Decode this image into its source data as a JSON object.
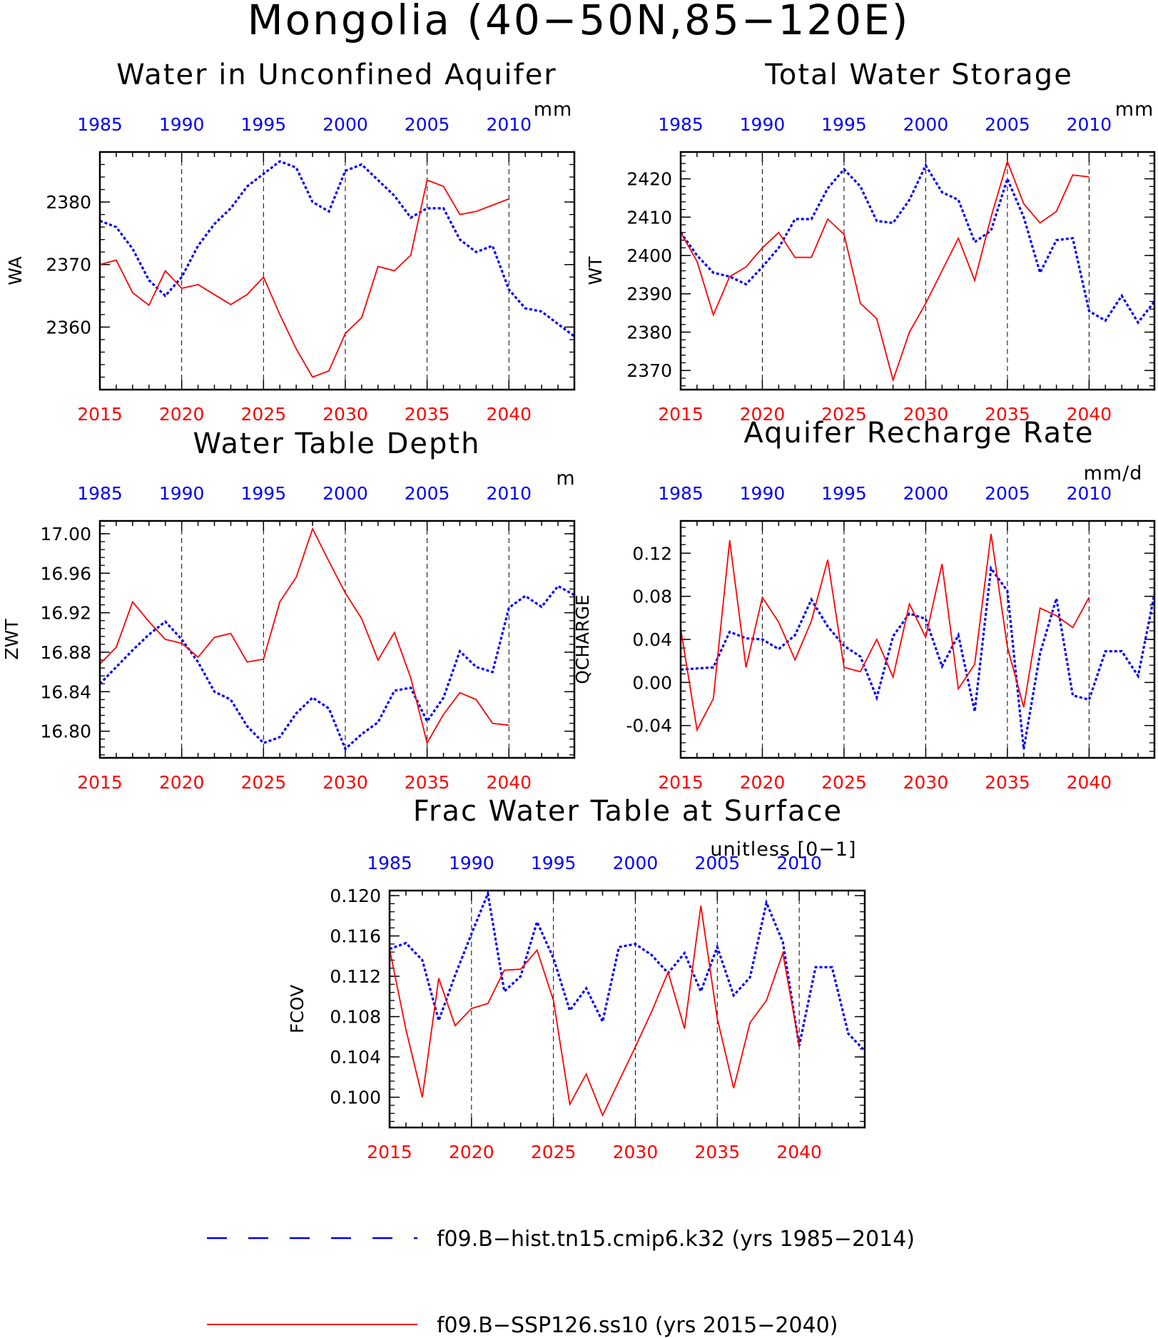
{
  "figure": {
    "title": "Mongolia (40−50N,85−120E)",
    "colors": {
      "historical": "#0000ff",
      "future": "#ff0000",
      "axes": "#000000"
    },
    "legend": {
      "placement": "bottom-center",
      "entries": [
        {
          "label": "f09.B−hist.tn15.cmip6.k32 (yrs 1985−2014)",
          "color": "#0000ff",
          "style": "dashed"
        },
        {
          "label": "f09.B−SSP126.ss10 (yrs 2015−2040)",
          "color": "#ff0000",
          "style": "solid"
        }
      ]
    }
  },
  "chart_data": [
    {
      "id": "wa",
      "type": "line",
      "title": "Water in Unconfined Aquifer",
      "ylabel": "WA",
      "units": "mm",
      "ylim": [
        2350,
        2388
      ],
      "yticks": [
        2360,
        2370,
        2380
      ],
      "ytick_labels": [
        "2360",
        "2370",
        "2380"
      ],
      "bottom_x_ticks": [
        "2015",
        "2020",
        "2025",
        "2030",
        "2035",
        "2040"
      ],
      "top_x_ticks": [
        "1985",
        "1990",
        "1995",
        "2000",
        "2005",
        "2010"
      ],
      "grid": "vertical dashed at 5-year ticks",
      "series": [
        {
          "name": "f09.B−hist.tn15.cmip6.k32",
          "axis": "top",
          "x_start": 1985,
          "values": [
            2377,
            2376,
            2372.5,
            2367.5,
            2365,
            2368,
            2373,
            2376.5,
            2379,
            2382.5,
            2384.5,
            2386.5,
            2385.5,
            2380,
            2378.5,
            2385,
            2386,
            2383.5,
            2381,
            2377.5,
            2379,
            2379,
            2374,
            2372,
            2373,
            2366,
            2363,
            2362.5,
            2360.5,
            2358.5
          ]
        },
        {
          "name": "f09.B−SSP126.ss10",
          "axis": "bottom",
          "x_start": 2015,
          "values": [
            2370,
            2370.7,
            2365.5,
            2363.5,
            2369,
            2366.2,
            2366.8,
            2365.2,
            2363.6,
            2365.2,
            2368,
            2362,
            2356.5,
            2352,
            2353,
            2359,
            2361.5,
            2369.7,
            2369,
            2371.5,
            2383.5,
            2382.5,
            2378,
            2378.5,
            2379.5,
            2380.5
          ]
        }
      ]
    },
    {
      "id": "wt",
      "type": "line",
      "title": "Total Water Storage",
      "ylabel": "WT",
      "units": "mm",
      "ylim": [
        2365,
        2427
      ],
      "yticks": [
        2370,
        2380,
        2390,
        2400,
        2410,
        2420
      ],
      "ytick_labels": [
        "2370",
        "2380",
        "2390",
        "2400",
        "2410",
        "2420"
      ],
      "bottom_x_ticks": [
        "2015",
        "2020",
        "2025",
        "2030",
        "2035",
        "2040"
      ],
      "top_x_ticks": [
        "1985",
        "1990",
        "1995",
        "2000",
        "2005",
        "2010"
      ],
      "grid": "vertical dashed at 5-year ticks",
      "series": [
        {
          "name": "f09.B−hist.tn15.cmip6.k32",
          "axis": "top",
          "x_start": 1985,
          "values": [
            2406,
            2400,
            2395.5,
            2394.5,
            2392.5,
            2397,
            2402,
            2409.5,
            2409.5,
            2417.5,
            2422.5,
            2418,
            2409,
            2408.5,
            2414.5,
            2423.5,
            2416.5,
            2414.5,
            2403.5,
            2406.5,
            2420,
            2410,
            2395.5,
            2404,
            2404.5,
            2385.5,
            2383,
            2389.5,
            2382.5,
            2388
          ]
        },
        {
          "name": "f09.B−SSP126.ss10",
          "axis": "bottom",
          "x_start": 2015,
          "values": [
            2406,
            2398.5,
            2384.5,
            2394.5,
            2397,
            2402,
            2406,
            2399.5,
            2399.5,
            2409.5,
            2405.5,
            2387.5,
            2383.5,
            2367.5,
            2380,
            2387.5,
            2396,
            2404.5,
            2393.5,
            2410,
            2424.5,
            2413.5,
            2408.5,
            2411.5,
            2421,
            2420.5
          ]
        }
      ]
    },
    {
      "id": "zwt",
      "type": "line",
      "title": "Water Table Depth",
      "ylabel": "ZWT",
      "units": "m",
      "ylim": [
        16.773,
        17.013
      ],
      "yticks": [
        16.8,
        16.84,
        16.88,
        16.92,
        16.96,
        17.0
      ],
      "ytick_labels": [
        "16.80",
        "16.84",
        "16.88",
        "16.92",
        "16.96",
        "17.00"
      ],
      "bottom_x_ticks": [
        "2015",
        "2020",
        "2025",
        "2030",
        "2035",
        "2040"
      ],
      "top_x_ticks": [
        "1985",
        "1990",
        "1995",
        "2000",
        "2005",
        "2010"
      ],
      "grid": "vertical dashed at 5-year ticks",
      "series": [
        {
          "name": "f09.B−hist.tn15.cmip6.k32",
          "axis": "top",
          "x_start": 1985,
          "values": [
            16.848,
            16.865,
            16.882,
            16.898,
            16.911,
            16.893,
            16.87,
            16.84,
            16.832,
            16.805,
            16.788,
            16.794,
            16.818,
            16.834,
            16.823,
            16.782,
            16.797,
            16.809,
            16.841,
            16.844,
            16.81,
            16.834,
            16.881,
            16.865,
            16.86,
            16.925,
            16.937,
            16.926,
            16.947,
            16.938
          ]
        },
        {
          "name": "f09.B−SSP126.ss10",
          "axis": "bottom",
          "x_start": 2015,
          "values": [
            16.868,
            16.885,
            16.931,
            16.911,
            16.893,
            16.889,
            16.875,
            16.895,
            16.899,
            16.87,
            16.873,
            16.931,
            16.956,
            17.005,
            16.972,
            16.94,
            16.914,
            16.872,
            16.9,
            16.854,
            16.788,
            16.817,
            16.839,
            16.832,
            16.808,
            16.806
          ]
        }
      ]
    },
    {
      "id": "qcharge",
      "type": "line",
      "title": "Aquifer Recharge Rate",
      "ylabel": "QCHARGE",
      "units": "mm/d",
      "ylim": [
        -0.07,
        0.15
      ],
      "yticks": [
        -0.04,
        0.0,
        0.04,
        0.08,
        0.12
      ],
      "ytick_labels": [
        "-0.04",
        "0.00",
        "0.04",
        "0.08",
        "0.12"
      ],
      "bottom_x_ticks": [
        "2015",
        "2020",
        "2025",
        "2030",
        "2035",
        "2040"
      ],
      "top_x_ticks": [
        "1985",
        "1990",
        "1995",
        "2000",
        "2005",
        "2010"
      ],
      "grid": "vertical dashed at 5-year ticks",
      "series": [
        {
          "name": "f09.B−hist.tn15.cmip6.k32",
          "axis": "top",
          "x_start": 1985,
          "values": [
            0.012,
            0.013,
            0.014,
            0.047,
            0.041,
            0.04,
            0.031,
            0.044,
            0.077,
            0.052,
            0.034,
            0.024,
            -0.014,
            0.043,
            0.064,
            0.059,
            0.015,
            0.044,
            -0.027,
            0.106,
            0.085,
            -0.062,
            0.027,
            0.078,
            -0.012,
            -0.016,
            0.029,
            0.029,
            0.006,
            0.082
          ]
        },
        {
          "name": "f09.B−SSP126.ss10",
          "axis": "bottom",
          "x_start": 2015,
          "values": [
            0.05,
            -0.044,
            -0.015,
            0.132,
            0.014,
            0.079,
            0.056,
            0.021,
            0.057,
            0.114,
            0.014,
            0.01,
            0.04,
            0.005,
            0.073,
            0.042,
            0.11,
            -0.006,
            0.017,
            0.138,
            0.033,
            -0.023,
            0.069,
            0.062,
            0.051,
            0.079
          ]
        }
      ]
    },
    {
      "id": "fcov",
      "type": "line",
      "title": "Frac Water Table at Surface",
      "ylabel": "FCOV",
      "units": "unitless [0−1]",
      "ylim": [
        0.097,
        0.1205
      ],
      "yticks": [
        0.1,
        0.104,
        0.108,
        0.112,
        0.116,
        0.12
      ],
      "ytick_labels": [
        "0.100",
        "0.104",
        "0.108",
        "0.112",
        "0.116",
        "0.120"
      ],
      "bottom_x_ticks": [
        "2015",
        "2020",
        "2025",
        "2030",
        "2035",
        "2040"
      ],
      "top_x_ticks": [
        "1985",
        "1990",
        "1995",
        "2000",
        "2005",
        "2010"
      ],
      "grid": "vertical dashed at 5-year ticks",
      "series": [
        {
          "name": "f09.B−hist.tn15.cmip6.k32",
          "axis": "top",
          "x_start": 1985,
          "values": [
            0.1147,
            0.1153,
            0.1136,
            0.1076,
            0.1121,
            0.1162,
            0.1202,
            0.1105,
            0.112,
            0.1174,
            0.1138,
            0.1086,
            0.1108,
            0.1075,
            0.1149,
            0.1152,
            0.1141,
            0.1123,
            0.1143,
            0.1105,
            0.1149,
            0.1101,
            0.1119,
            0.1193,
            0.1154,
            0.1051,
            0.1129,
            0.1129,
            0.1063,
            0.1046
          ]
        },
        {
          "name": "f09.B−SSP126.ss10",
          "axis": "bottom",
          "x_start": 2015,
          "values": [
            0.1147,
            0.1067,
            0.1,
            0.1118,
            0.1071,
            0.1088,
            0.1093,
            0.1126,
            0.1127,
            0.1146,
            0.1096,
            0.0993,
            0.1023,
            0.0982,
            0.1016,
            0.105,
            0.1085,
            0.1124,
            0.1068,
            0.119,
            0.1078,
            0.1009,
            0.1074,
            0.1096,
            0.1143,
            0.1052
          ]
        }
      ]
    }
  ]
}
